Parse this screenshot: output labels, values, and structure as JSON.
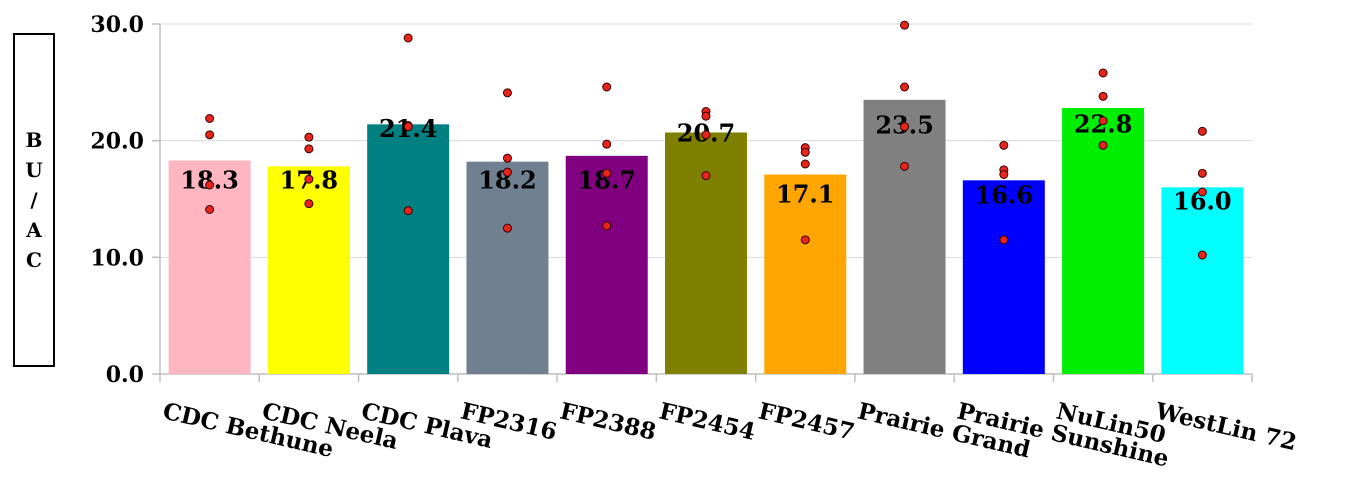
{
  "chart_data": {
    "type": "bar",
    "title": "",
    "xlabel": "",
    "ylabel": "B\nU\n/\nA\nC",
    "ylim": [
      0,
      30
    ],
    "yticks": [
      "0.0",
      "10.0",
      "20.0",
      "30.0"
    ],
    "grid": true,
    "categories": [
      "CDC Bethune",
      "CDC Neela",
      "CDC Plava",
      "FP2316",
      "FP2388",
      "FP2454",
      "FP2457",
      "Prairie Grand",
      "Prairie Sunshine",
      "NuLin50",
      "WestLin 72"
    ],
    "values": [
      18.3,
      17.8,
      21.4,
      18.2,
      18.7,
      20.7,
      17.1,
      23.5,
      16.6,
      22.8,
      16.0
    ],
    "value_labels": [
      "18.3",
      "17.8",
      "21.4",
      "18.2",
      "18.7",
      "20.7",
      "17.1",
      "23.5",
      "16.6",
      "22.8",
      "16.0"
    ],
    "label_y": [
      16.6,
      16.6,
      21.0,
      16.6,
      16.6,
      20.6,
      15.4,
      21.3,
      15.3,
      21.4,
      14.8
    ],
    "bar_colors": [
      "#FFB6C1",
      "#FFFF00",
      "#008080",
      "#708090",
      "#800080",
      "#808000",
      "#FFA500",
      "#808080",
      "#0000FF",
      "#00EE00",
      "#00FFFF"
    ],
    "points": [
      [
        21.9,
        20.5,
        16.2,
        14.1
      ],
      [
        20.3,
        19.3,
        16.7,
        14.6
      ],
      [
        28.8,
        21.3,
        21.2,
        14.0
      ],
      [
        24.1,
        18.5,
        17.3,
        12.5
      ],
      [
        24.6,
        19.7,
        17.2,
        12.7
      ],
      [
        22.5,
        22.1,
        20.5,
        17.0
      ],
      [
        19.4,
        19.0,
        18.0,
        11.5
      ],
      [
        29.9,
        24.6,
        21.2,
        17.8
      ],
      [
        19.6,
        17.5,
        17.1,
        11.5
      ],
      [
        25.8,
        23.8,
        21.7,
        19.6
      ],
      [
        20.8,
        17.2,
        15.6,
        10.2
      ]
    ],
    "point_color": "#E8251C"
  }
}
